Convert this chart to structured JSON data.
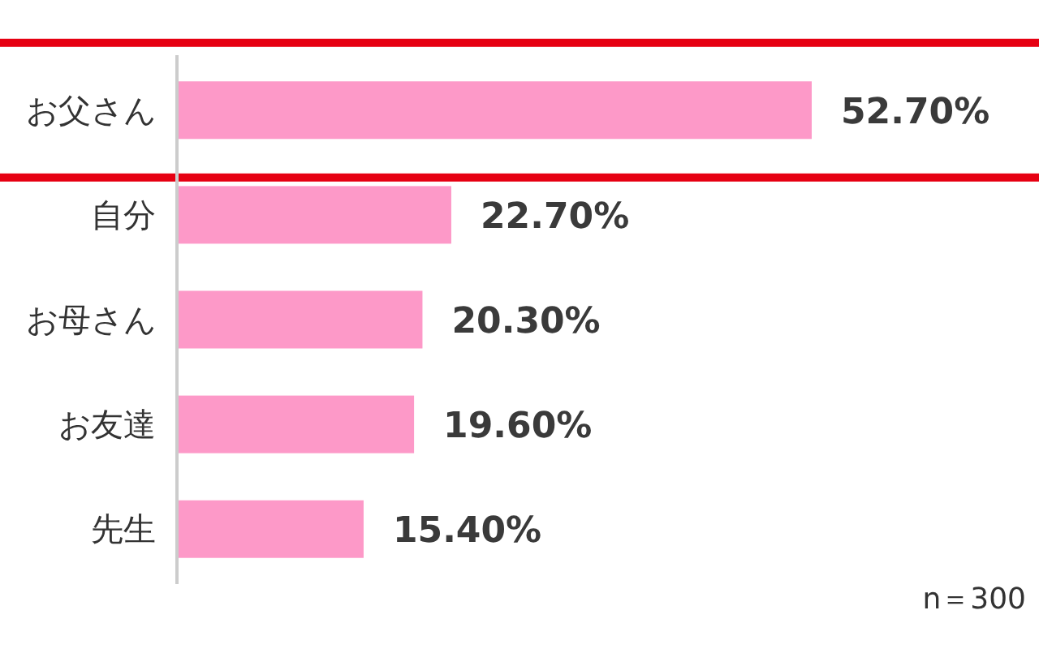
{
  "chart_data": {
    "type": "bar",
    "orientation": "horizontal",
    "categories": [
      "お父さん",
      "自分",
      "お母さん",
      "お友達",
      "先生"
    ],
    "values": [
      52.7,
      22.7,
      20.3,
      19.6,
      15.4
    ],
    "value_labels": [
      "52.70%",
      "22.70%",
      "20.30%",
      "19.60%",
      "15.40%"
    ],
    "color": "#fd99c8",
    "annotations": [
      "n＝300"
    ]
  }
}
